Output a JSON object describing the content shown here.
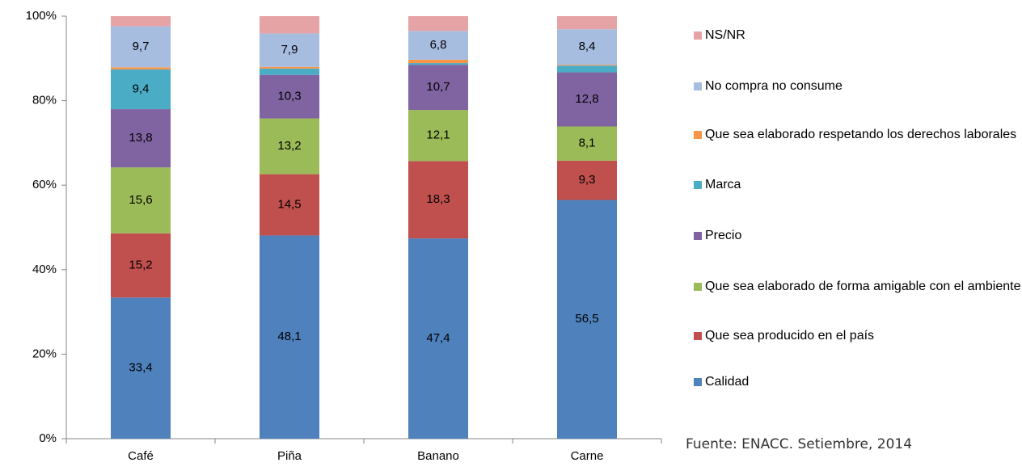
{
  "chart_data": {
    "type": "stacked_bar",
    "categories": [
      "Café",
      "Piña",
      "Banano",
      "Carne"
    ],
    "ylim": [
      0,
      100
    ],
    "yticks": [
      {
        "value": 0,
        "label": "0%"
      },
      {
        "value": 20,
        "label": "20%"
      },
      {
        "value": 40,
        "label": "40%"
      },
      {
        "value": 60,
        "label": "60%"
      },
      {
        "value": 80,
        "label": "80%"
      },
      {
        "value": 100,
        "label": "100%"
      }
    ],
    "series": [
      {
        "name": "Calidad",
        "color": "#4f81bd",
        "values": [
          33.4,
          48.1,
          47.4,
          56.5
        ],
        "value_labels": [
          "33,4",
          "48,1",
          "47,4",
          "56,5"
        ]
      },
      {
        "name": "Que sea producido en el país",
        "color": "#c0504d",
        "values": [
          15.2,
          14.5,
          18.3,
          9.3
        ],
        "value_labels": [
          "15,2",
          "14,5",
          "18,3",
          "9,3"
        ]
      },
      {
        "name": "Que sea elaborado de forma amigable con el ambiente",
        "color": "#9bbb59",
        "values": [
          15.6,
          13.2,
          12.1,
          8.1
        ],
        "value_labels": [
          "15,6",
          "13,2",
          "12,1",
          "8,1"
        ]
      },
      {
        "name": "Precio",
        "color": "#8064a2",
        "values": [
          13.8,
          10.3,
          10.7,
          12.8
        ],
        "value_labels": [
          "13,8",
          "10,3",
          "10,7",
          "12,8"
        ]
      },
      {
        "name": "Marca",
        "color": "#4bacc6",
        "values": [
          9.4,
          1.5,
          0.4,
          1.6
        ],
        "value_labels": [
          "9,4",
          null,
          null,
          null
        ]
      },
      {
        "name": "Que sea elaborado respetando los derechos laborales",
        "color": "#f79646",
        "values": [
          0.5,
          0.4,
          0.8,
          0.2
        ],
        "value_labels": [
          null,
          null,
          null,
          null
        ]
      },
      {
        "name": "No compra no consume",
        "color": "#a7bde0",
        "values": [
          9.7,
          7.9,
          6.8,
          8.4
        ],
        "value_labels": [
          "9,7",
          "7,9",
          "6,8",
          "8,4"
        ]
      },
      {
        "name": "NS/NR",
        "color": "#e6a3a6",
        "values": [
          2.4,
          4.1,
          3.5,
          3.1
        ],
        "value_labels": [
          null,
          null,
          null,
          null
        ]
      }
    ],
    "source": "Fuente: ENACC. Setiembre, 2014"
  }
}
